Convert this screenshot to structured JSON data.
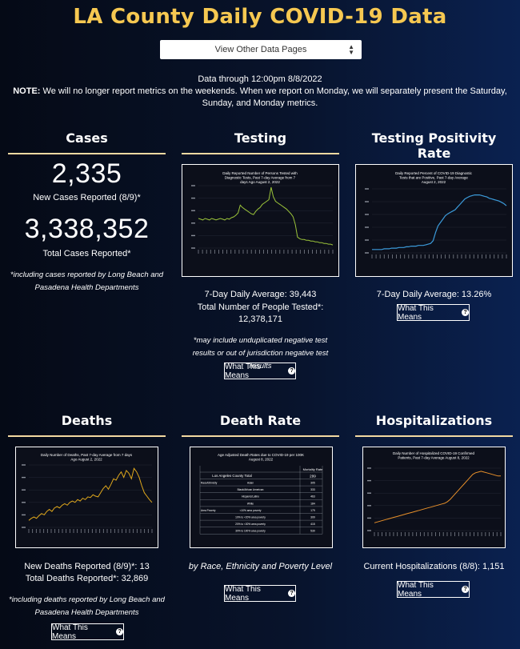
{
  "page": {
    "title": "LA County Daily COVID-19 Data",
    "select_label": "View Other Data Pages",
    "data_through": "Data through 12:00pm 8/8/2022",
    "note_label": "NOTE:",
    "note_text": "We will no longer report metrics on the weekends. When we report on Monday, we will separately present the Saturday, Sunday, and Monday metrics."
  },
  "cases": {
    "heading": "Cases",
    "new_value": "2,335",
    "new_label": "New Cases Reported (8/9)*",
    "total_value": "3,338,352",
    "total_label": "Total Cases Reported*",
    "footnote": "*including cases reported by Long Beach and Pasadena Health Departments"
  },
  "testing": {
    "heading": "Testing",
    "chart_title": "Daily Reported Number of Persons Tested with Diagnostic Tests, Past 7-day Average from 7 days Ago August 2, 2022",
    "avg": "7-Day Daily Average: 39,443",
    "total_label": "Total Number of People Tested*:",
    "total_value": "12,378,171",
    "footnote": "*may include unduplicated negative test results or out of jurisdiction negative test results",
    "button": "What This Means"
  },
  "positivity": {
    "heading": "Testing Positivity Rate",
    "chart_title": "Daily Reported Percent of COVID-19 Diagnostic Tests that are Positive, Past 7-day Average August 2, 2022",
    "avg": "7-Day Daily Average: 13.26%",
    "button": "What This Means"
  },
  "deaths": {
    "heading": "Deaths",
    "chart_title": "Daily Number of Deaths, Past 7-day Average from 7 days Ago August 2, 2022",
    "new": "New Deaths Reported (8/9)*: 13",
    "total": "Total Deaths Reported*: 32,869",
    "footnote": "*including deaths reported by Long Beach and Pasadena Health Departments",
    "button": "What This Means"
  },
  "death_rate": {
    "heading": "Death Rate",
    "chart_title": "Age Adjusted Death Rates due to COVID-19 per 100K August 8, 2022",
    "caption": "by Race, Ethnicity and Poverty Level",
    "button": "What This Means",
    "table": {
      "col_header": "Mortality Rate",
      "total_label": "Los Angeles County Total",
      "total_value": "299",
      "rows": [
        {
          "group": "Race/Ethnicity",
          "sub": "Asian",
          "value": "305"
        },
        {
          "group": "",
          "sub": "Black/African American",
          "value": "333"
        },
        {
          "group": "",
          "sub": "Hispanic/Latino",
          "value": "463"
        },
        {
          "group": "",
          "sub": "White",
          "value": "184"
        },
        {
          "group": "Area Poverty",
          "sub": "<10% area poverty",
          "value": "179"
        },
        {
          "group": "",
          "sub": "10% to <20% area poverty",
          "value": "309"
        },
        {
          "group": "",
          "sub": "20% to <30% area poverty",
          "value": "415"
        },
        {
          "group": "",
          "sub": "30% to 100% area poverty",
          "value": "530"
        }
      ]
    }
  },
  "hospitalizations": {
    "heading": "Hospitalizations",
    "chart_title": "Daily Number of Hospitalized COVID-19 Confirmed Patients, Past 7-day Average August 8, 2022",
    "current": "Current Hospitalizations (8/8): 1,151",
    "button": "What This Means"
  },
  "colors": {
    "title": "#f6c851",
    "testing_line": "#9bc43a",
    "positivity_line": "#3b9ad9",
    "deaths_line": "#e0a81c",
    "hosp_line": "#e8902a"
  },
  "chart_data": [
    {
      "type": "line",
      "id": "testing",
      "values": [
        38,
        37,
        36,
        38,
        37,
        36,
        38,
        37,
        36,
        37,
        38,
        37,
        36,
        38,
        37,
        39,
        40,
        42,
        45,
        55,
        52,
        50,
        48,
        46,
        44,
        43,
        47,
        50,
        52,
        56,
        58,
        60,
        62,
        78,
        66,
        60,
        58,
        56,
        54,
        52,
        50,
        47,
        44,
        40,
        30,
        14,
        12,
        11,
        11,
        10,
        10,
        9,
        9,
        8,
        8,
        7,
        7,
        6,
        6,
        5,
        5,
        4
      ]
    },
    {
      "type": "line",
      "id": "positivity",
      "values": [
        5,
        5,
        5,
        5,
        5,
        6,
        6,
        6,
        7,
        7,
        7,
        8,
        8,
        8,
        9,
        9,
        10,
        10,
        10,
        11,
        11,
        11,
        12,
        13,
        14,
        18,
        30,
        40,
        45,
        50,
        55,
        58,
        60,
        62,
        64,
        68,
        72,
        76,
        80,
        82,
        84,
        85,
        86,
        86,
        86,
        85,
        84,
        83,
        81,
        80,
        79,
        78,
        77,
        75,
        73,
        70
      ]
    },
    {
      "type": "line",
      "id": "deaths",
      "values": [
        10,
        13,
        15,
        13,
        17,
        20,
        18,
        23,
        26,
        23,
        28,
        30,
        28,
        32,
        34,
        32,
        36,
        38,
        36,
        40,
        38,
        42,
        40,
        44,
        43,
        47,
        45,
        44,
        50,
        56,
        60,
        55,
        62,
        70,
        68,
        75,
        80,
        72,
        82,
        78,
        70,
        85,
        80,
        72,
        60,
        50,
        45,
        40,
        36
      ]
    },
    {
      "type": "line",
      "id": "hospitalizations",
      "values": [
        10,
        11,
        12,
        13,
        14,
        15,
        16,
        17,
        18,
        19,
        20,
        21,
        22,
        23,
        24,
        25,
        26,
        27,
        28,
        29,
        30,
        31,
        32,
        33,
        34,
        35,
        37,
        40,
        44,
        48,
        52,
        56,
        60,
        64,
        68,
        72,
        74,
        75,
        76,
        75,
        74,
        73,
        72,
        71,
        70,
        70
      ]
    }
  ]
}
